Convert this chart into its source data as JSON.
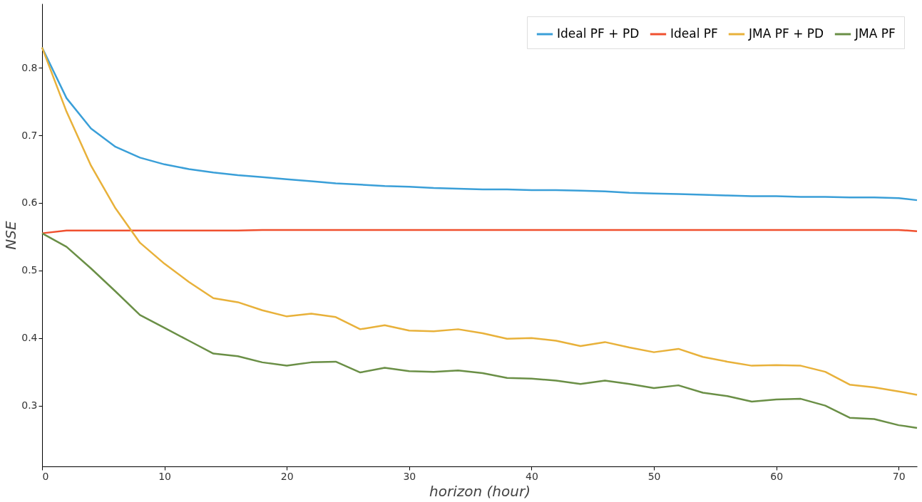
{
  "chart_data": {
    "type": "line",
    "xlabel": "horizon (hour)",
    "ylabel": "NSE",
    "xlim": [
      0,
      71.5
    ],
    "ylim": [
      0.21,
      0.895
    ],
    "xticks": [
      0,
      10,
      20,
      30,
      40,
      50,
      60,
      70
    ],
    "yticks": [
      0.3,
      0.4,
      0.5,
      0.6,
      0.7,
      0.8
    ],
    "grid": false,
    "legend": "top right",
    "marker": "none",
    "line_style": "solid",
    "x": [
      0,
      2,
      4,
      6,
      8,
      10,
      12,
      14,
      16,
      18,
      20,
      22,
      24,
      26,
      28,
      30,
      32,
      34,
      36,
      38,
      40,
      42,
      44,
      46,
      48,
      50,
      52,
      54,
      56,
      58,
      60,
      62,
      64,
      66,
      68,
      70,
      71.5
    ],
    "series": [
      {
        "name": "Ideal PF + PD",
        "color": "#3a9fd8",
        "values": [
          0.83,
          0.755,
          0.71,
          0.683,
          0.667,
          0.657,
          0.65,
          0.645,
          0.641,
          0.638,
          0.635,
          0.632,
          0.629,
          0.627,
          0.625,
          0.624,
          0.622,
          0.621,
          0.62,
          0.62,
          0.619,
          0.619,
          0.618,
          0.617,
          0.615,
          0.614,
          0.613,
          0.612,
          0.611,
          0.61,
          0.61,
          0.609,
          0.609,
          0.608,
          0.608,
          0.607,
          0.604
        ]
      },
      {
        "name": "Ideal PF",
        "color": "#f0502f",
        "values": [
          0.555,
          0.559,
          0.559,
          0.559,
          0.559,
          0.559,
          0.559,
          0.559,
          0.559,
          0.56,
          0.56,
          0.56,
          0.56,
          0.56,
          0.56,
          0.56,
          0.56,
          0.56,
          0.56,
          0.56,
          0.56,
          0.56,
          0.56,
          0.56,
          0.56,
          0.56,
          0.56,
          0.56,
          0.56,
          0.56,
          0.56,
          0.56,
          0.56,
          0.56,
          0.56,
          0.56,
          0.558
        ]
      },
      {
        "name": "JMA PF + PD",
        "color": "#e8b13a",
        "values": [
          0.83,
          0.735,
          0.655,
          0.592,
          0.541,
          0.51,
          0.483,
          0.459,
          0.453,
          0.441,
          0.432,
          0.436,
          0.431,
          0.413,
          0.419,
          0.411,
          0.41,
          0.413,
          0.407,
          0.399,
          0.4,
          0.396,
          0.388,
          0.394,
          0.386,
          0.379,
          0.384,
          0.372,
          0.365,
          0.359,
          0.36,
          0.359,
          0.35,
          0.331,
          0.327,
          0.321,
          0.316
        ]
      },
      {
        "name": "JMA PF",
        "color": "#6a8f46",
        "values": [
          0.555,
          0.535,
          0.503,
          0.469,
          0.434,
          0.415,
          0.396,
          0.377,
          0.373,
          0.364,
          0.359,
          0.364,
          0.365,
          0.349,
          0.356,
          0.351,
          0.35,
          0.352,
          0.348,
          0.341,
          0.34,
          0.337,
          0.332,
          0.337,
          0.332,
          0.326,
          0.33,
          0.319,
          0.314,
          0.306,
          0.309,
          0.31,
          0.3,
          0.282,
          0.28,
          0.271,
          0.267
        ]
      }
    ]
  }
}
